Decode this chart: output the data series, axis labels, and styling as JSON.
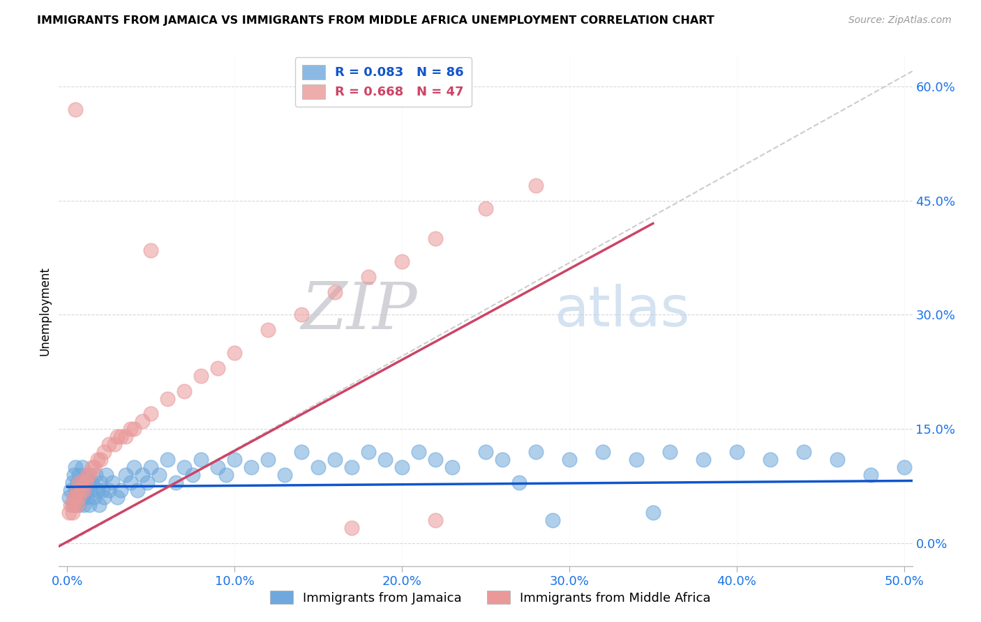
{
  "title": "IMMIGRANTS FROM JAMAICA VS IMMIGRANTS FROM MIDDLE AFRICA UNEMPLOYMENT CORRELATION CHART",
  "source": "Source: ZipAtlas.com",
  "xlabel_ticks": [
    "0.0%",
    "10.0%",
    "20.0%",
    "30.0%",
    "40.0%",
    "50.0%"
  ],
  "xlabel_vals": [
    0.0,
    0.1,
    0.2,
    0.3,
    0.4,
    0.5
  ],
  "ylabel": "Unemployment",
  "ylabel_ticks_right": [
    "0.0%",
    "15.0%",
    "30.0%",
    "45.0%",
    "60.0%"
  ],
  "ylabel_vals_right": [
    0.0,
    0.15,
    0.3,
    0.45,
    0.6
  ],
  "xlim": [
    -0.005,
    0.505
  ],
  "ylim": [
    -0.03,
    0.64
  ],
  "jamaica_color": "#6fa8dc",
  "middle_africa_color": "#ea9999",
  "jamaica_R": 0.083,
  "jamaica_N": 86,
  "middle_africa_R": 0.668,
  "middle_africa_N": 47,
  "jamaica_line_color": "#1155cc",
  "middle_africa_line_color": "#cc4466",
  "diagonal_line_color": "#cccccc",
  "watermark_zip": "ZIP",
  "watermark_atlas": "atlas",
  "legend_R_jamaica": "R = 0.083",
  "legend_N_jamaica": "N = 86",
  "legend_R_middle_africa": "R = 0.668",
  "legend_N_middle_africa": "N = 47",
  "jamaica_x": [
    0.001,
    0.002,
    0.003,
    0.003,
    0.004,
    0.004,
    0.005,
    0.005,
    0.005,
    0.006,
    0.006,
    0.007,
    0.007,
    0.007,
    0.008,
    0.008,
    0.009,
    0.009,
    0.01,
    0.01,
    0.01,
    0.011,
    0.012,
    0.012,
    0.013,
    0.013,
    0.014,
    0.015,
    0.016,
    0.017,
    0.018,
    0.019,
    0.02,
    0.021,
    0.022,
    0.023,
    0.025,
    0.027,
    0.03,
    0.032,
    0.035,
    0.038,
    0.04,
    0.042,
    0.045,
    0.048,
    0.05,
    0.055,
    0.06,
    0.065,
    0.07,
    0.075,
    0.08,
    0.09,
    0.095,
    0.1,
    0.11,
    0.12,
    0.13,
    0.14,
    0.15,
    0.16,
    0.17,
    0.18,
    0.19,
    0.2,
    0.21,
    0.22,
    0.23,
    0.25,
    0.26,
    0.28,
    0.3,
    0.32,
    0.34,
    0.36,
    0.38,
    0.4,
    0.42,
    0.44,
    0.46,
    0.48,
    0.5,
    0.29,
    0.35,
    0.27
  ],
  "jamaica_y": [
    0.06,
    0.07,
    0.05,
    0.08,
    0.06,
    0.09,
    0.07,
    0.05,
    0.1,
    0.06,
    0.08,
    0.07,
    0.09,
    0.05,
    0.08,
    0.06,
    0.07,
    0.1,
    0.06,
    0.08,
    0.05,
    0.07,
    0.09,
    0.06,
    0.08,
    0.05,
    0.07,
    0.08,
    0.06,
    0.09,
    0.07,
    0.05,
    0.08,
    0.07,
    0.06,
    0.09,
    0.07,
    0.08,
    0.06,
    0.07,
    0.09,
    0.08,
    0.1,
    0.07,
    0.09,
    0.08,
    0.1,
    0.09,
    0.11,
    0.08,
    0.1,
    0.09,
    0.11,
    0.1,
    0.09,
    0.11,
    0.1,
    0.11,
    0.09,
    0.12,
    0.1,
    0.11,
    0.1,
    0.12,
    0.11,
    0.1,
    0.12,
    0.11,
    0.1,
    0.12,
    0.11,
    0.12,
    0.11,
    0.12,
    0.11,
    0.12,
    0.11,
    0.12,
    0.11,
    0.12,
    0.11,
    0.09,
    0.1,
    0.03,
    0.04,
    0.08
  ],
  "middle_africa_x": [
    0.001,
    0.002,
    0.003,
    0.004,
    0.004,
    0.005,
    0.006,
    0.006,
    0.007,
    0.007,
    0.008,
    0.009,
    0.01,
    0.011,
    0.012,
    0.013,
    0.015,
    0.016,
    0.018,
    0.02,
    0.022,
    0.025,
    0.028,
    0.03,
    0.032,
    0.035,
    0.038,
    0.04,
    0.045,
    0.05,
    0.06,
    0.07,
    0.08,
    0.09,
    0.1,
    0.12,
    0.14,
    0.16,
    0.18,
    0.2,
    0.22,
    0.25,
    0.28,
    0.05,
    0.17,
    0.22,
    0.005
  ],
  "middle_africa_y": [
    0.04,
    0.05,
    0.04,
    0.06,
    0.05,
    0.06,
    0.05,
    0.07,
    0.06,
    0.08,
    0.07,
    0.08,
    0.07,
    0.08,
    0.09,
    0.09,
    0.1,
    0.1,
    0.11,
    0.11,
    0.12,
    0.13,
    0.13,
    0.14,
    0.14,
    0.14,
    0.15,
    0.15,
    0.16,
    0.17,
    0.19,
    0.2,
    0.22,
    0.23,
    0.25,
    0.28,
    0.3,
    0.33,
    0.35,
    0.37,
    0.4,
    0.44,
    0.47,
    0.385,
    0.02,
    0.03,
    0.57
  ],
  "jamaica_line_x": [
    0.0,
    0.505
  ],
  "jamaica_line_y": [
    0.074,
    0.082
  ],
  "middle_africa_line_x": [
    -0.01,
    0.35
  ],
  "middle_africa_line_y": [
    -0.01,
    0.42
  ]
}
